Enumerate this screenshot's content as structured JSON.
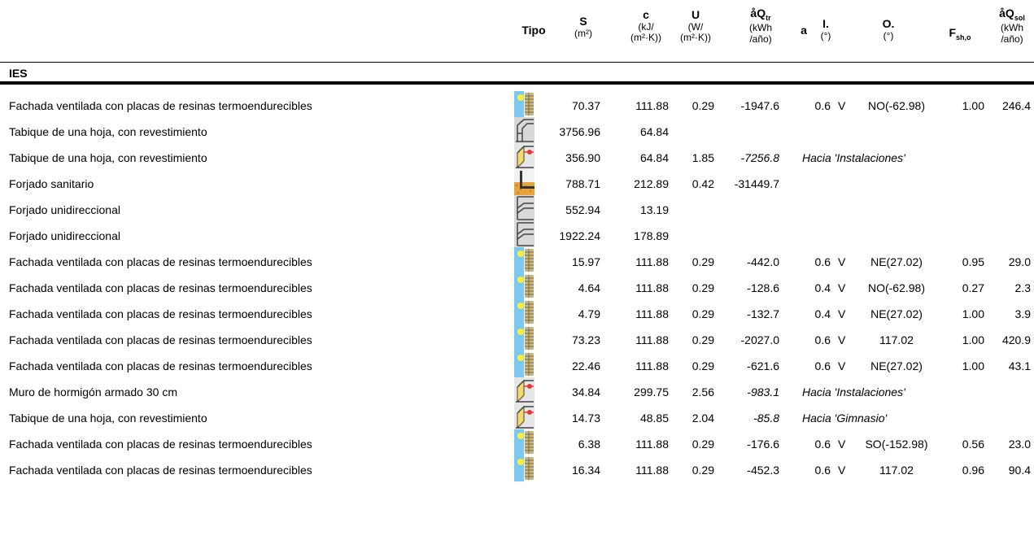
{
  "headers": {
    "tipo": "Tipo",
    "S": {
      "main": "S",
      "unit": "(m²)"
    },
    "c": {
      "main": "c",
      "unit1": "(kJ/",
      "unit2": "(m²·K))"
    },
    "U": {
      "main": "U",
      "unit1": "(W/",
      "unit2": "(m²·K))"
    },
    "Qtr": {
      "main": "åQ",
      "sub": "tr",
      "unit1": "(kWh",
      "unit2": "/año)"
    },
    "a": {
      "main": "a"
    },
    "I": {
      "main": "I.",
      "unit": "(°)"
    },
    "O": {
      "main": "O.",
      "unit": "(°)"
    },
    "F": {
      "main": "F",
      "sub": "sh,o"
    },
    "Qsol": {
      "main": "åQ",
      "sub": "sol",
      "unit1": "(kWh",
      "unit2": "/año)"
    }
  },
  "section": "IES",
  "rows": [
    {
      "name": "Fachada ventilada con placas de resinas termoendurecibles",
      "icon": "exterior-wall-icon",
      "S": "70.37",
      "c": "111.88",
      "U": "0.29",
      "Qtr": "-1947.6",
      "a": "0.6",
      "I": "V",
      "O": "NO(-62.98)",
      "F": "1.00",
      "Qsol": "246.4"
    },
    {
      "name": "Tabique de una hoja, con revestimiento",
      "icon": "interior-partition-icon",
      "S": "3756.96",
      "c": "64.84"
    },
    {
      "name": "Tabique de una hoja, con revestimiento",
      "icon": "adjacent-wall-icon",
      "S": "356.90",
      "c": "64.84",
      "U": "1.85",
      "Qtr_i": "-7256.8",
      "hacia": "Hacia 'Instalaciones'"
    },
    {
      "name": "Forjado sanitario",
      "icon": "ground-slab-icon",
      "S": "788.71",
      "c": "212.89",
      "U": "0.42",
      "Qtr": "-31449.7"
    },
    {
      "name": "Forjado unidireccional",
      "icon": "interior-slab-icon",
      "S": "552.94",
      "c": "13.19"
    },
    {
      "name": "Forjado unidireccional",
      "icon": "interior-slab-icon",
      "S": "1922.24",
      "c": "178.89"
    },
    {
      "name": "Fachada ventilada con placas de resinas termoendurecibles",
      "icon": "exterior-wall-icon",
      "S": "15.97",
      "c": "111.88",
      "U": "0.29",
      "Qtr": "-442.0",
      "a": "0.6",
      "I": "V",
      "O": "NE(27.02)",
      "F": "0.95",
      "Qsol": "29.0"
    },
    {
      "name": "Fachada ventilada con placas de resinas termoendurecibles",
      "icon": "exterior-wall-icon",
      "S": "4.64",
      "c": "111.88",
      "U": "0.29",
      "Qtr": "-128.6",
      "a": "0.4",
      "I": "V",
      "O": "NO(-62.98)",
      "F": "0.27",
      "Qsol": "2.3"
    },
    {
      "name": "Fachada ventilada con placas de resinas termoendurecibles",
      "icon": "exterior-wall-icon",
      "S": "4.79",
      "c": "111.88",
      "U": "0.29",
      "Qtr": "-132.7",
      "a": "0.4",
      "I": "V",
      "O": "NE(27.02)",
      "F": "1.00",
      "Qsol": "3.9"
    },
    {
      "name": "Fachada ventilada con placas de resinas termoendurecibles",
      "icon": "exterior-wall-icon",
      "S": "73.23",
      "c": "111.88",
      "U": "0.29",
      "Qtr": "-2027.0",
      "a": "0.6",
      "I": "V",
      "O": "117.02",
      "F": "1.00",
      "Qsol": "420.9"
    },
    {
      "name": "Fachada ventilada con placas de resinas termoendurecibles",
      "icon": "exterior-wall-icon",
      "S": "22.46",
      "c": "111.88",
      "U": "0.29",
      "Qtr": "-621.6",
      "a": "0.6",
      "I": "V",
      "O": "NE(27.02)",
      "F": "1.00",
      "Qsol": "43.1"
    },
    {
      "name": "Muro de hormigón armado 30 cm",
      "icon": "adjacent-wall-icon",
      "S": "34.84",
      "c": "299.75",
      "U": "2.56",
      "Qtr_i": "-983.1",
      "hacia": "Hacia 'Instalaciones'"
    },
    {
      "name": "Tabique de una hoja, con revestimiento",
      "icon": "adjacent-wall-icon",
      "S": "14.73",
      "c": "48.85",
      "U": "2.04",
      "Qtr_i": "-85.8",
      "hacia": "Hacia 'Gimnasio'"
    },
    {
      "name": "Fachada ventilada con placas de resinas termoendurecibles",
      "icon": "exterior-wall-icon",
      "S": "6.38",
      "c": "111.88",
      "U": "0.29",
      "Qtr": "-176.6",
      "a": "0.6",
      "I": "V",
      "O": "SO(-152.98)",
      "F": "0.56",
      "Qsol": "23.0"
    },
    {
      "name": "Fachada ventilada con placas de resinas termoendurecibles",
      "icon": "exterior-wall-icon",
      "S": "16.34",
      "c": "111.88",
      "U": "0.29",
      "Qtr": "-452.3",
      "a": "0.6",
      "I": "V",
      "O": "117.02",
      "F": "0.96",
      "Qsol": "90.4"
    }
  ]
}
